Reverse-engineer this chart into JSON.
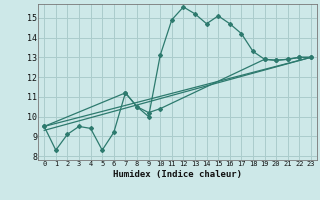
{
  "xlabel": "Humidex (Indice chaleur)",
  "bg_color": "#cde8e8",
  "grid_color": "#aacccc",
  "line_color": "#2d7a6e",
  "xlim": [
    -0.5,
    23.5
  ],
  "ylim": [
    7.8,
    15.7
  ],
  "yticks": [
    8,
    9,
    10,
    11,
    12,
    13,
    14,
    15
  ],
  "xticks": [
    0,
    1,
    2,
    3,
    4,
    5,
    6,
    7,
    8,
    9,
    10,
    11,
    12,
    13,
    14,
    15,
    16,
    17,
    18,
    19,
    20,
    21,
    22,
    23
  ],
  "series1_x": [
    0,
    1,
    2,
    3,
    4,
    5,
    6,
    7,
    8,
    9,
    10,
    11,
    12,
    13,
    14,
    15,
    16,
    17,
    18,
    19,
    20,
    21,
    22,
    23
  ],
  "series1_y": [
    9.5,
    8.3,
    9.1,
    9.5,
    9.4,
    8.3,
    9.2,
    11.2,
    10.5,
    10.0,
    13.1,
    14.9,
    15.55,
    15.2,
    14.7,
    15.1,
    14.7,
    14.2,
    13.3,
    12.9,
    12.85,
    12.9,
    13.0,
    13.0
  ],
  "series2_x": [
    0,
    7,
    8,
    9,
    10,
    19,
    20,
    21,
    22,
    23
  ],
  "series2_y": [
    9.5,
    11.2,
    10.5,
    10.2,
    10.4,
    12.9,
    12.85,
    12.9,
    13.0,
    13.0
  ],
  "line3_x": [
    0,
    23
  ],
  "line3_y": [
    9.5,
    13.0
  ],
  "line4_x": [
    0,
    23
  ],
  "line4_y": [
    9.3,
    13.0
  ]
}
